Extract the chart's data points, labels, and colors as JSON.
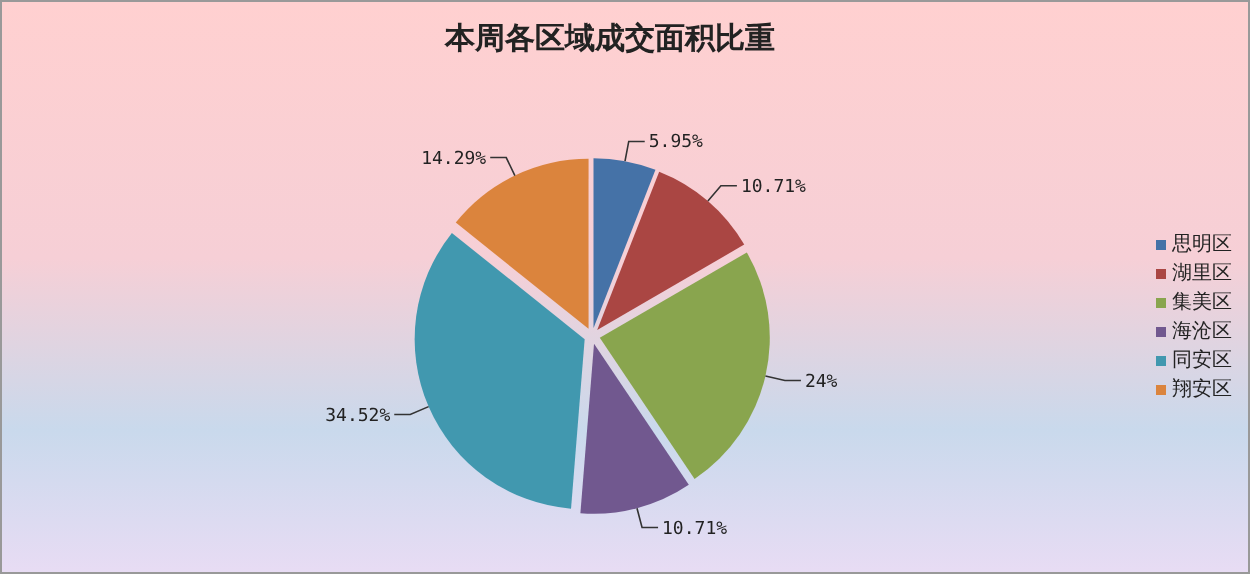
{
  "chart_data": {
    "type": "pie",
    "title": "本周各区域成交面积比重",
    "categories": [
      "思明区",
      "湖里区",
      "集美区",
      "海沧区",
      "同安区",
      "翔安区"
    ],
    "values": [
      5.95,
      10.71,
      24,
      10.71,
      34.52,
      14.29
    ],
    "colors": [
      "#4572a7",
      "#aa4643",
      "#89a54e",
      "#71588f",
      "#4198af",
      "#db843d"
    ],
    "value_labels": [
      "5.95%",
      "10.71%",
      "24%",
      "10.71%",
      "34.52%",
      "14.29%"
    ],
    "legend": "right"
  }
}
